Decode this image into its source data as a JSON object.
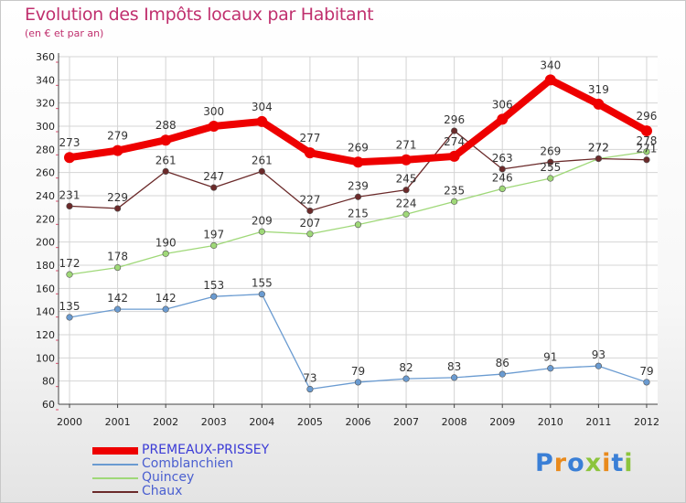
{
  "header": {
    "title": "Evolution des Impôts locaux par Habitant",
    "subtitle": "(en € et par an)"
  },
  "logo": {
    "letters": [
      {
        "char": "P",
        "color": "#3a7fd6"
      },
      {
        "char": "r",
        "color": "#e98a1c"
      },
      {
        "char": "o",
        "color": "#3a7fd6"
      },
      {
        "char": "x",
        "color": "#8cc43c"
      },
      {
        "char": "i",
        "color": "#e98a1c"
      },
      {
        "char": "t",
        "color": "#3a7fd6"
      },
      {
        "char": "i",
        "color": "#8cc43c"
      }
    ]
  },
  "chart_data": {
    "type": "line",
    "x": [
      "2000",
      "2001",
      "2002",
      "2003",
      "2004",
      "2005",
      "2006",
      "2007",
      "2008",
      "2009",
      "2010",
      "2011",
      "2012"
    ],
    "ylim": [
      60,
      360
    ],
    "yticks": [
      "60",
      "80",
      "100",
      "120",
      "140",
      "160",
      "180",
      "200",
      "220",
      "240",
      "260",
      "280",
      "300",
      "320",
      "340",
      "360"
    ],
    "grid": true,
    "legend_position": "bottom-left",
    "series": [
      {
        "name": "PREMEAUX-PRISSEY",
        "color": "#ee0000",
        "emphasis": true,
        "values": [
          273,
          279,
          288,
          300,
          304,
          277,
          269,
          271,
          274,
          306,
          340,
          319,
          296
        ]
      },
      {
        "name": "Comblanchien",
        "color": "#6a9bd1",
        "emphasis": false,
        "values": [
          135,
          142,
          142,
          153,
          155,
          73,
          79,
          82,
          83,
          86,
          91,
          93,
          79
        ]
      },
      {
        "name": "Quincey",
        "color": "#9fd878",
        "emphasis": false,
        "values": [
          172,
          178,
          190,
          197,
          209,
          207,
          215,
          224,
          235,
          246,
          255,
          272,
          278
        ]
      },
      {
        "name": "Chaux",
        "color": "#6b2a2a",
        "emphasis": false,
        "values": [
          231,
          229,
          261,
          247,
          261,
          227,
          239,
          245,
          296,
          263,
          269,
          272,
          271
        ]
      }
    ]
  }
}
